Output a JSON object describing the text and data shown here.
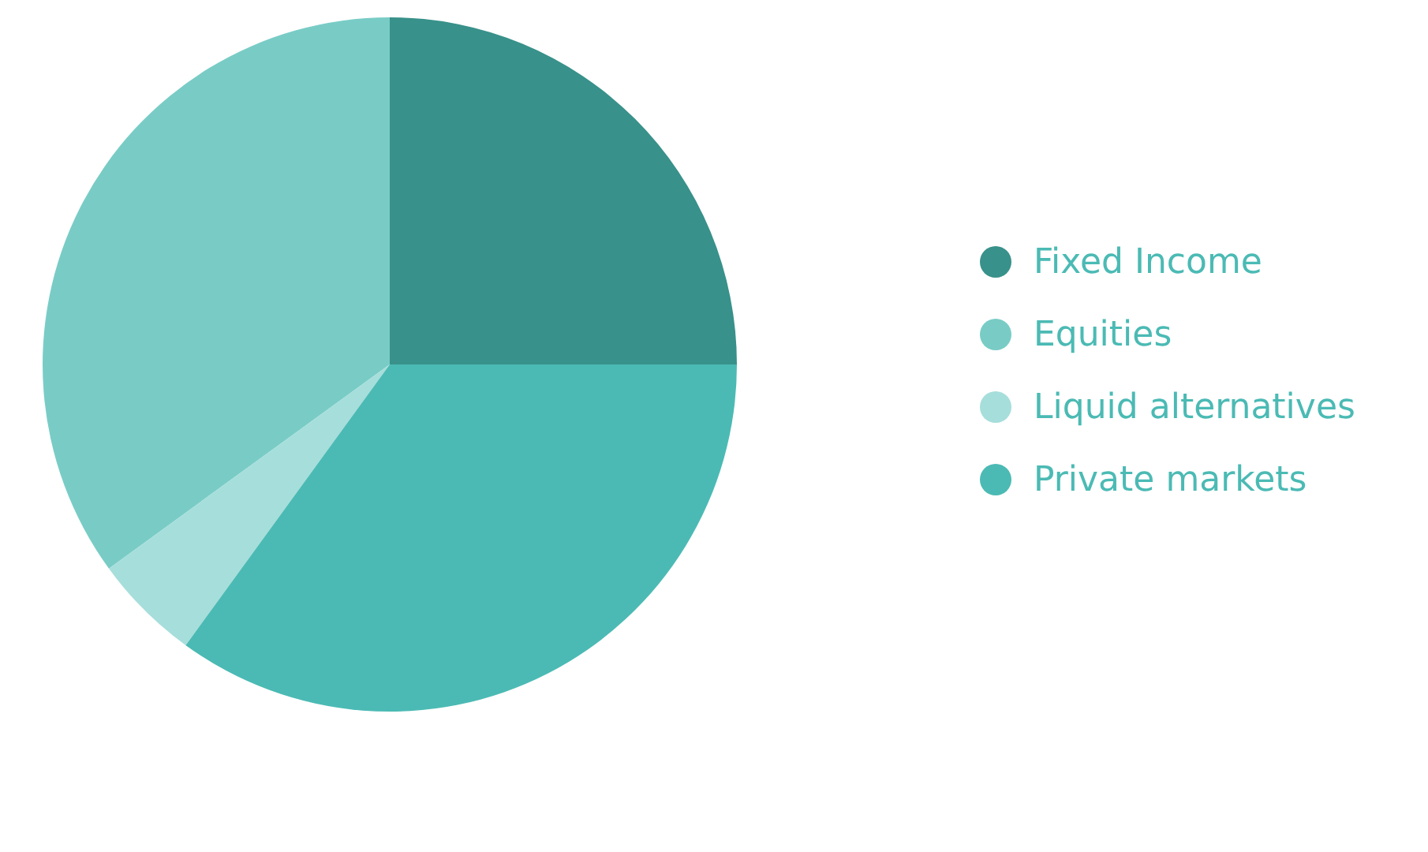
{
  "chart_data": {
    "type": "pie",
    "categories": [
      "Fixed Income",
      "Equities",
      "Liquid alternatives",
      "Private markets"
    ],
    "values": [
      25,
      35,
      5,
      35
    ],
    "colors": [
      "#38918a",
      "#79ccc6",
      "#a6dedb",
      "#4bbab4"
    ],
    "legend": "right"
  }
}
